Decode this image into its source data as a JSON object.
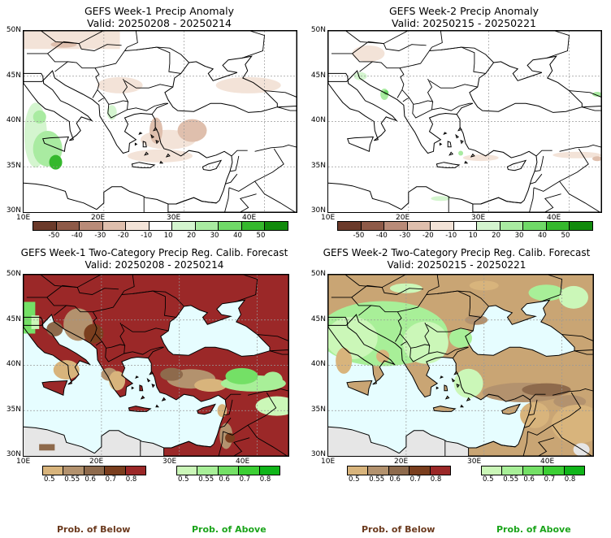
{
  "panels": [
    {
      "title": "GEFS Week-1 Precip Anomaly",
      "valid": "Valid: 20250208 - 20250214"
    },
    {
      "title": "GEFS Week-2 Precip Anomaly",
      "valid": "Valid: 20250215 - 20250221"
    },
    {
      "title": "GEFS Week-1 Two-Category Precip Reg. Calib. Forecast",
      "valid": "Valid: 20250208 - 20250214"
    },
    {
      "title": "GEFS Week-2 Two-Category Precip Reg. Calib. Forecast",
      "valid": "Valid: 20250215 - 20250221"
    }
  ],
  "axes": {
    "lat_labels": [
      "50N",
      "45N",
      "40N",
      "35N",
      "30N"
    ],
    "lon_labels": [
      "10E",
      "20E",
      "30E",
      "40E"
    ]
  },
  "anomaly_colorbar": {
    "labels": [
      "-50",
      "-40",
      "-30",
      "-20",
      "-10",
      "10",
      "20",
      "30",
      "40",
      "50"
    ],
    "colors": [
      "#6b3a2a",
      "#8e5a48",
      "#b98b78",
      "#dfbfad",
      "#f3e3d8",
      "#ffffff",
      "#d4f5cf",
      "#a9eba1",
      "#6fd967",
      "#35b82d",
      "#118a0c"
    ]
  },
  "prob_colorbar": {
    "below_labels": [
      "0.5",
      "0.55",
      "0.6",
      "0.7",
      "0.8"
    ],
    "below_colors": [
      "#d8b47c",
      "#b3926e",
      "#8e6a4c",
      "#7a3e1e",
      "#9b2828"
    ],
    "above_labels": [
      "0.5",
      "0.55",
      "0.6",
      "0.7",
      "0.8"
    ],
    "above_colors": [
      "#cbf7b8",
      "#a8ef98",
      "#74e066",
      "#3ccf34",
      "#10b51a"
    ]
  },
  "prob_labels": {
    "below": "Prob. of Below",
    "above": "Prob. of Above"
  },
  "colors": {
    "water": "#e6fdff",
    "land_gray": "#e6e6e6",
    "below_text": "#6b3a1e",
    "above_text": "#1aa41a"
  }
}
